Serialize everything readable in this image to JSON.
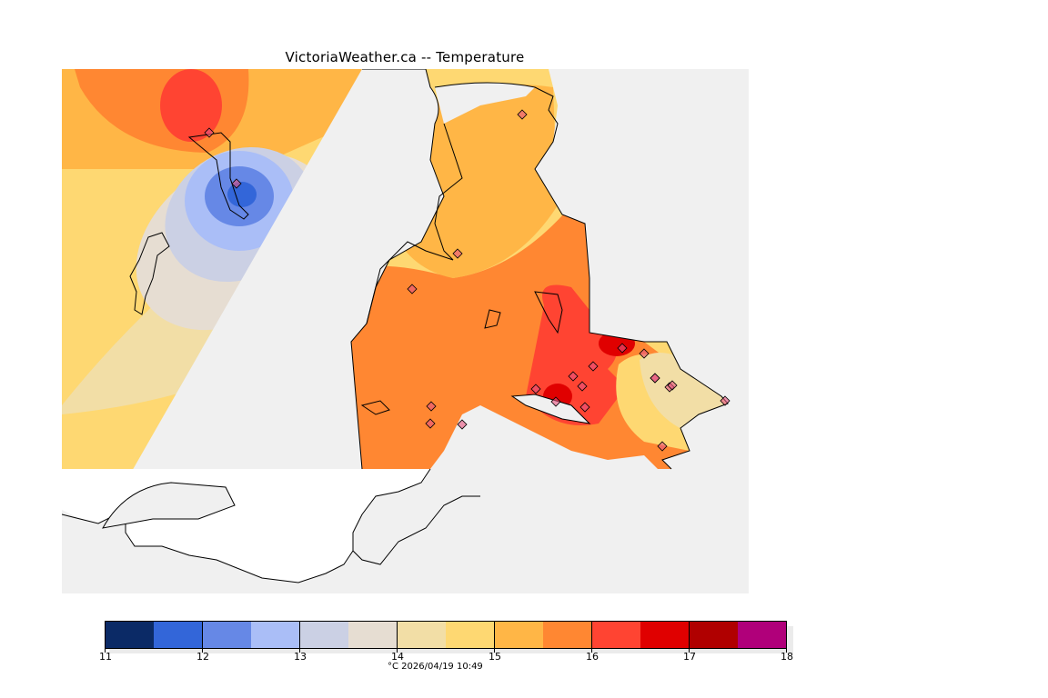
{
  "title": "VictoriaWeather.ca -- Temperature",
  "colorbar": {
    "unit_and_time": "°C  2026/04/19 10:49",
    "ticks": [
      "11",
      "12",
      "13",
      "14",
      "15",
      "16",
      "17",
      "18"
    ],
    "levels": [
      11,
      11.5,
      12,
      12.5,
      13,
      13.5,
      14,
      14.5,
      15,
      15.5,
      16,
      16.5,
      17,
      17.5,
      18
    ],
    "colors": [
      "#0b2a66",
      "#3366d9",
      "#6688e6",
      "#aabef7",
      "#cbd0e4",
      "#e6ddd2",
      "#f2dea6",
      "#fed872",
      "#ffb646",
      "#ff8732",
      "#ff4432",
      "#e00000",
      "#b00000",
      "#b0007a"
    ]
  },
  "map": {
    "background_color": "#f0f0f0",
    "land_unmapped_color": "#ffffff",
    "station_marker_color": "#e75480",
    "station_count": 22
  }
}
